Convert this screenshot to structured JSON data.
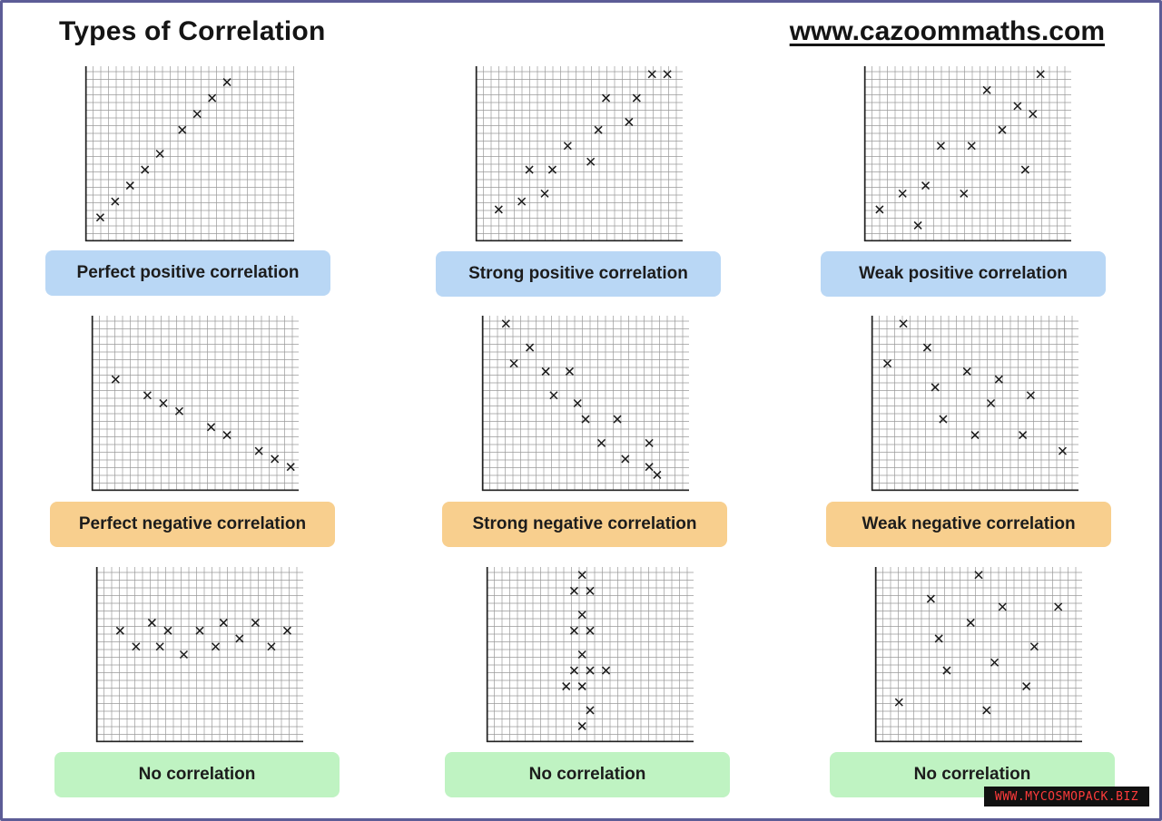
{
  "header": {
    "title": "Types of Correlation",
    "site": "www.cazoommaths.com"
  },
  "watermark": "WWW.MYCOSMOPACK.BIZ",
  "colors": {
    "blue_label": "#b9d7f5",
    "orange_label": "#f8cf8e",
    "green_label": "#bff3c2",
    "grid": "#9a9a9a",
    "axis": "#222222",
    "frame": "#5c5c96"
  },
  "chart_data": [
    {
      "type": "scatter",
      "title": "Perfect positive correlation",
      "xlim": [
        0,
        28
      ],
      "ylim": [
        0,
        22
      ],
      "grid": true,
      "series": [
        {
          "marker": "x",
          "x": [
            2,
            4,
            6,
            8,
            10,
            13,
            15,
            17,
            19
          ],
          "y": [
            3,
            5,
            7,
            9,
            11,
            14,
            16,
            18,
            20
          ]
        }
      ]
    },
    {
      "type": "scatter",
      "title": "Strong positive correlation",
      "xlim": [
        0,
        27
      ],
      "ylim": [
        0,
        22
      ],
      "grid": true,
      "series": [
        {
          "marker": "x",
          "x": [
            3,
            6,
            7,
            9,
            10,
            12,
            15,
            16,
            17,
            20,
            21,
            23,
            25
          ],
          "y": [
            4,
            5,
            9,
            6,
            9,
            12,
            10,
            14,
            18,
            15,
            18,
            21,
            21
          ]
        }
      ]
    },
    {
      "type": "scatter",
      "title": "Weak positive correlation",
      "xlim": [
        0,
        27
      ],
      "ylim": [
        0,
        22
      ],
      "grid": true,
      "series": [
        {
          "marker": "x",
          "x": [
            2,
            5,
            7,
            8,
            10,
            13,
            14,
            16,
            18,
            21,
            20,
            23,
            22
          ],
          "y": [
            4,
            6,
            2,
            7,
            12,
            6,
            12,
            19,
            14,
            9,
            17,
            21,
            16
          ]
        }
      ]
    },
    {
      "type": "scatter",
      "title": "Perfect negative correlation",
      "xlim": [
        0,
        26
      ],
      "ylim": [
        0,
        22
      ],
      "grid": true,
      "series": [
        {
          "marker": "x",
          "x": [
            3,
            7,
            9,
            11,
            15,
            17,
            21,
            23,
            25
          ],
          "y": [
            14,
            12,
            11,
            10,
            8,
            7,
            5,
            4,
            3
          ]
        }
      ]
    },
    {
      "type": "scatter",
      "title": "Strong negative correlation",
      "xlim": [
        0,
        26
      ],
      "ylim": [
        0,
        22
      ],
      "grid": true,
      "series": [
        {
          "marker": "x",
          "x": [
            3,
            4,
            6,
            8,
            9,
            11,
            12,
            13,
            15,
            17,
            18,
            21,
            21,
            22
          ],
          "y": [
            21,
            16,
            18,
            15,
            12,
            15,
            11,
            9,
            6,
            9,
            4,
            6,
            3,
            2
          ]
        }
      ]
    },
    {
      "type": "scatter",
      "title": "Weak negative correlation",
      "xlim": [
        0,
        26
      ],
      "ylim": [
        0,
        22
      ],
      "grid": true,
      "series": [
        {
          "marker": "x",
          "x": [
            2,
            4,
            7,
            8,
            9,
            12,
            13,
            15,
            16,
            19,
            20,
            24
          ],
          "y": [
            16,
            21,
            18,
            13,
            9,
            15,
            7,
            11,
            14,
            7,
            12,
            5
          ]
        }
      ]
    },
    {
      "type": "scatter",
      "title": "No correlation",
      "xlim": [
        0,
        26
      ],
      "ylim": [
        0,
        22
      ],
      "grid": true,
      "series": [
        {
          "marker": "x",
          "x": [
            3,
            5,
            7,
            8,
            9,
            11,
            13,
            15,
            16,
            18,
            20,
            22,
            24
          ],
          "y": [
            14,
            12,
            15,
            12,
            14,
            11,
            14,
            12,
            15,
            13,
            15,
            12,
            14
          ]
        }
      ]
    },
    {
      "type": "scatter",
      "title": "No correlation",
      "xlim": [
        0,
        26
      ],
      "ylim": [
        0,
        22
      ],
      "grid": true,
      "series": [
        {
          "marker": "x",
          "x": [
            12,
            11,
            13,
            12,
            13,
            11,
            12,
            11,
            13,
            10,
            12,
            15,
            13,
            12
          ],
          "y": [
            21,
            19,
            19,
            16,
            14,
            14,
            11,
            9,
            9,
            7,
            7,
            9,
            4,
            2
          ]
        }
      ]
    },
    {
      "type": "scatter",
      "title": "No correlation",
      "xlim": [
        0,
        26
      ],
      "ylim": [
        0,
        22
      ],
      "grid": true,
      "series": [
        {
          "marker": "x",
          "x": [
            3,
            7,
            8,
            9,
            12,
            13,
            14,
            15,
            16,
            19,
            20,
            23
          ],
          "y": [
            5,
            18,
            13,
            9,
            15,
            21,
            4,
            10,
            17,
            7,
            12,
            17
          ]
        }
      ]
    }
  ]
}
